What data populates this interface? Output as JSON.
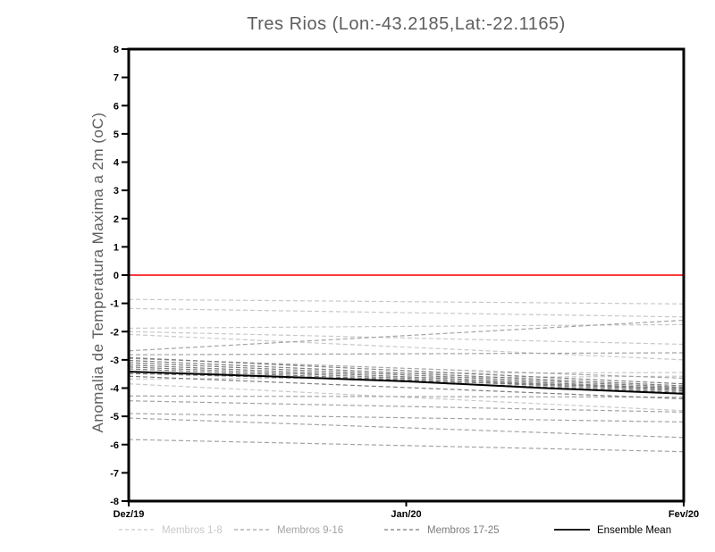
{
  "page": {
    "background": "#ffffff"
  },
  "chart_data": {
    "type": "line",
    "title": "Tres Rios (Lon:-43.2185,Lat:-22.1165)",
    "ylabel": "Anomalia de Temperatura Maxima a 2m (oC)",
    "xlabel": "",
    "ylim": [
      -8,
      8
    ],
    "y_tick_step": 1,
    "x_ticklabels": [
      "Dez/19",
      "Jan/20",
      "Fev/20"
    ],
    "grid": false,
    "legend_position": "bottom",
    "zero_line": {
      "value": 0,
      "color": "#fa3c3c"
    },
    "axis_color": "#000000",
    "groups": [
      {
        "name": "Membros 1-8",
        "color": "#c9c9c9",
        "style": "dashed"
      },
      {
        "name": "Membros 9-16",
        "color": "#a4a4a4",
        "style": "dashed"
      },
      {
        "name": "Membros 17-25",
        "color": "#7d7d7d",
        "style": "dashed"
      },
      {
        "name": "Ensemble Mean",
        "color": "#000000",
        "style": "solid"
      }
    ],
    "members": [
      {
        "group": 0,
        "values": [
          -0.86,
          -1.02
        ]
      },
      {
        "group": 0,
        "values": [
          -1.18,
          -1.48
        ]
      },
      {
        "group": 0,
        "values": [
          -1.88,
          -1.75
        ]
      },
      {
        "group": 0,
        "values": [
          -2.0,
          -2.45
        ]
      },
      {
        "group": 0,
        "values": [
          -2.1,
          -3.0
        ]
      },
      {
        "group": 0,
        "values": [
          -3.5,
          -3.45
        ]
      },
      {
        "group": 0,
        "values": [
          -3.68,
          -3.58
        ]
      },
      {
        "group": 0,
        "values": [
          -3.85,
          -4.8
        ]
      },
      {
        "group": 1,
        "values": [
          -2.68,
          -1.6
        ]
      },
      {
        "group": 1,
        "values": [
          -2.82,
          -2.75
        ]
      },
      {
        "group": 1,
        "values": [
          -2.95,
          -3.65
        ]
      },
      {
        "group": 1,
        "values": [
          -4.28,
          -4.32
        ]
      },
      {
        "group": 1,
        "values": [
          -4.45,
          -4.85
        ]
      },
      {
        "group": 1,
        "values": [
          -4.9,
          -5.2
        ]
      },
      {
        "group": 1,
        "values": [
          -5.06,
          -5.75
        ]
      },
      {
        "group": 1,
        "values": [
          -5.82,
          -6.25
        ]
      },
      {
        "group": 2,
        "values": [
          -2.92,
          -3.85
        ]
      },
      {
        "group": 2,
        "values": [
          -3.02,
          -3.92
        ]
      },
      {
        "group": 2,
        "values": [
          -3.1,
          -3.97
        ]
      },
      {
        "group": 2,
        "values": [
          -3.18,
          -4.02
        ]
      },
      {
        "group": 2,
        "values": [
          -3.25,
          -4.06
        ]
      },
      {
        "group": 2,
        "values": [
          -3.32,
          -4.1
        ]
      },
      {
        "group": 2,
        "values": [
          -3.4,
          -4.15
        ]
      },
      {
        "group": 2,
        "values": [
          -3.48,
          -4.0
        ]
      },
      {
        "group": 2,
        "values": [
          -3.58,
          -4.38
        ]
      }
    ],
    "ensemble_mean": {
      "name": "Ensemble Mean",
      "values": [
        -3.42,
        -3.58,
        -3.76,
        -4.0,
        -4.2
      ]
    }
  }
}
